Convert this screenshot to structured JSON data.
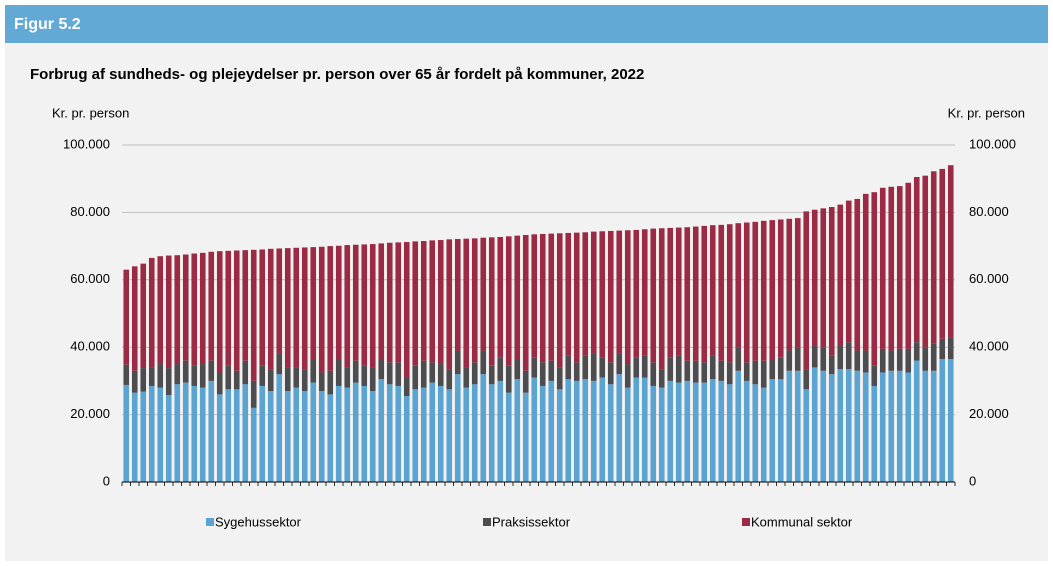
{
  "header": "Figur 5.2",
  "chart_data": {
    "type": "stacked_bar",
    "title": "Forbrug af sundheds- og plejeydelser pr. person over 65 år fordelt på kommuner, 2022",
    "y_label": "Kr. pr. person",
    "y2_label": "Kr. pr. person",
    "ylim": [
      0,
      100000
    ],
    "yticks": [
      0,
      {
        "value": 20000,
        "label": "20.000"
      },
      {
        "value": 40000,
        "label": "40.000"
      },
      {
        "value": 60000,
        "label": "60.000"
      },
      {
        "value": 80000,
        "label": "80.000"
      },
      {
        "value": 100000,
        "label": "100.000"
      }
    ],
    "y2lim": [
      0,
      100000
    ],
    "y2ticks": [
      0,
      {
        "value": 20000,
        "label": "20.000"
      },
      {
        "value": 40000,
        "label": "40.000"
      },
      {
        "value": 60000,
        "label": "60.000"
      },
      {
        "value": 80000,
        "label": "80.000"
      },
      {
        "value": 100000,
        "label": "100.000"
      }
    ],
    "grid": true,
    "legend": "bottom",
    "categories": [
      null,
      null,
      null,
      null,
      null,
      null,
      null,
      null,
      null,
      null,
      null,
      null,
      null,
      null,
      null,
      null,
      null,
      null,
      null,
      null,
      null,
      null,
      null,
      null,
      null,
      null,
      null,
      null,
      null,
      null,
      null,
      null,
      null,
      null,
      null,
      null,
      null,
      null,
      null,
      null,
      null,
      null,
      null,
      null,
      null,
      null,
      null,
      null,
      null,
      null,
      null,
      null,
      null,
      null,
      null,
      null,
      null,
      null,
      null,
      null,
      null,
      null,
      null,
      null,
      null,
      null,
      null,
      null,
      null,
      null,
      null,
      null,
      null,
      null,
      null,
      null,
      null,
      null,
      null,
      null,
      null,
      null,
      null,
      null,
      null,
      null,
      null,
      null,
      null,
      null,
      null,
      null,
      null,
      null,
      null,
      null,
      null,
      null
    ],
    "series": [
      {
        "name": "Sygehussektor",
        "color": "#5ba3d0",
        "values": [
          28800,
          26500,
          26800,
          28500,
          28000,
          25800,
          29000,
          29500,
          28500,
          28000,
          30000,
          26000,
          27500,
          27500,
          29000,
          22000,
          28500,
          27000,
          32000,
          27000,
          28000,
          27000,
          29500,
          27000,
          26000,
          28500,
          28000,
          29500,
          28500,
          27000,
          30500,
          29000,
          28500,
          25500,
          27500,
          28000,
          29500,
          28500,
          27500,
          32000,
          28000,
          29000,
          32000,
          29000,
          30000,
          26500,
          30500,
          26500,
          31000,
          28500,
          30000,
          27500,
          30500,
          30000,
          30500,
          30000,
          31000,
          29000,
          32000,
          28000,
          31000,
          31000,
          28500,
          28000,
          30000,
          29500,
          30000,
          29500,
          29500,
          30500,
          30000,
          29000,
          33000,
          30000,
          29000,
          28000,
          30500,
          30500,
          33000,
          33000,
          27500,
          34000,
          33000,
          32000,
          33500,
          33500,
          33000,
          32500,
          28500,
          32500,
          33000,
          33000,
          32500,
          36000,
          33000,
          33000,
          36500,
          36500
        ]
      },
      {
        "name": "Praksissektor",
        "color": "#4d4d4f",
        "values": [
          6000,
          6500,
          7000,
          5500,
          7000,
          8000,
          6000,
          6500,
          6000,
          7000,
          6000,
          6500,
          7000,
          5500,
          7000,
          8000,
          6000,
          6500,
          6000,
          7000,
          6000,
          6500,
          7000,
          5500,
          7000,
          8000,
          6000,
          6500,
          6000,
          7000,
          6000,
          6500,
          7000,
          5500,
          7000,
          8000,
          6000,
          6500,
          6000,
          7000,
          6000,
          6500,
          7000,
          5500,
          7000,
          8000,
          6000,
          6500,
          6000,
          7000,
          6000,
          6500,
          7000,
          5500,
          7000,
          8000,
          6000,
          6500,
          6000,
          7000,
          6000,
          6500,
          7000,
          5500,
          7000,
          8000,
          6000,
          6500,
          6000,
          7000,
          6000,
          6500,
          7000,
          5500,
          7000,
          8000,
          6000,
          6500,
          6000,
          7000,
          6000,
          6500,
          7000,
          5500,
          7000,
          8000,
          6000,
          6500,
          6000,
          7000,
          6000,
          6500,
          7000,
          5500,
          7000,
          8000,
          6000,
          6500
        ]
      },
      {
        "name": "Kommunal sektor",
        "color": "#9b2a45",
        "values": [
          28200,
          31000,
          31000,
          32500,
          32000,
          33400,
          32300,
          31500,
          33300,
          33000,
          32300,
          36000,
          34100,
          35700,
          32800,
          38900,
          34500,
          35700,
          31300,
          35400,
          35500,
          36100,
          33200,
          37300,
          37000,
          33600,
          36300,
          34400,
          36000,
          36600,
          34300,
          35500,
          35600,
          40200,
          36900,
          35500,
          36200,
          36800,
          38500,
          33100,
          38200,
          36800,
          33500,
          38100,
          35700,
          38400,
          36600,
          40300,
          36500,
          38100,
          37700,
          39800,
          36400,
          38500,
          36600,
          36300,
          37400,
          39000,
          36600,
          39700,
          37800,
          37500,
          39700,
          41800,
          38400,
          38000,
          39600,
          39800,
          40500,
          38700,
          40300,
          41000,
          36800,
          41500,
          41200,
          41500,
          41200,
          40900,
          39100,
          38300,
          46800,
          40300,
          41200,
          44100,
          41800,
          42000,
          45000,
          46500,
          51500,
          47800,
          48600,
          48300,
          49300,
          49000,
          50900,
          51200,
          50400,
          51000
        ]
      }
    ]
  }
}
